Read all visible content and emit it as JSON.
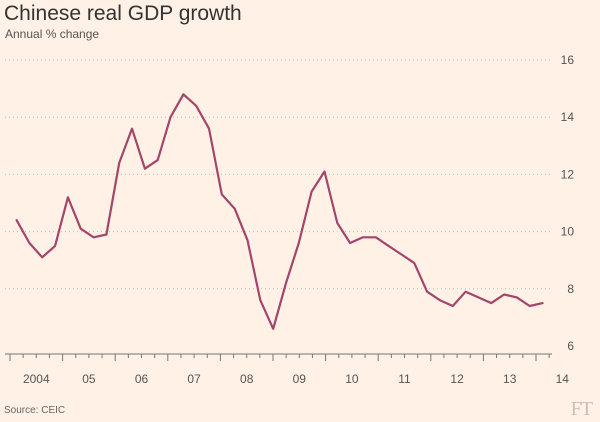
{
  "header": {
    "title": "Chinese real GDP growth",
    "subtitle": "Annual % change"
  },
  "footer": {
    "source": "Source: CEIC",
    "logo": "FT"
  },
  "colors": {
    "background": "#fff1e5",
    "line": "#a4456c",
    "grid": "#c9bcb0",
    "axis": "#777777",
    "text": "#555555"
  },
  "chart_data": {
    "type": "line",
    "title": "Chinese real GDP growth",
    "subtitle": "Annual % change",
    "xlabel": "",
    "ylabel": "",
    "ylim": [
      6,
      16
    ],
    "y_ticks": [
      6,
      8,
      10,
      12,
      14,
      16
    ],
    "x_tick_labels": [
      "2004",
      "05",
      "06",
      "07",
      "08",
      "09",
      "10",
      "11",
      "12",
      "13",
      "14"
    ],
    "grid": true,
    "grid_style": "dotted horizontal",
    "y_axis_side": "right",
    "x_start_year": 2004,
    "x_end_year": 2014.25,
    "series": [
      {
        "name": "Real GDP growth",
        "color": "#a4456c",
        "values": [
          10.4,
          9.6,
          9.1,
          9.5,
          11.2,
          10.1,
          9.8,
          9.9,
          12.4,
          13.6,
          12.2,
          12.5,
          14.0,
          14.8,
          14.4,
          13.6,
          11.3,
          10.8,
          9.7,
          7.6,
          6.6,
          8.2,
          9.6,
          11.4,
          12.1,
          10.3,
          9.6,
          9.8,
          9.8,
          9.5,
          9.2,
          8.9,
          7.9,
          7.6,
          7.4,
          7.9,
          7.7,
          7.5,
          7.8,
          7.7,
          7.4,
          7.5
        ]
      }
    ]
  }
}
